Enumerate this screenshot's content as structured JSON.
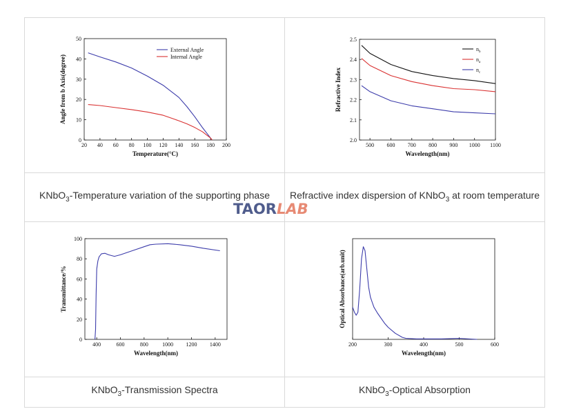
{
  "watermark": {
    "part1": "TAOR",
    "part2": "LAB"
  },
  "captions": [
    {
      "main": "KNbO",
      "sub": "3",
      "rest": "-Temperature variation of the supporting phase"
    },
    {
      "pre": "Refractive index dispersion of KNbO",
      "sub": "3",
      "rest": " at room temperature"
    },
    {
      "main": "KNbO",
      "sub": "3",
      "rest": "-Transmission Spectra"
    },
    {
      "main": "KNbO",
      "sub": "3",
      "rest": "-Optical Absorption"
    }
  ],
  "chart_data": [
    {
      "type": "line",
      "xlabel": "Temperature(°C)",
      "ylabel": "Angle from b Axis(degree)",
      "xlim": [
        20,
        200
      ],
      "ylim": [
        0,
        50
      ],
      "xticks": [
        "20",
        "40",
        "60",
        "80",
        "100",
        "120",
        "140",
        "160",
        "180",
        "200"
      ],
      "yticks": [
        "0",
        "10",
        "20",
        "30",
        "40",
        "50"
      ],
      "legend": "top-right",
      "series": [
        {
          "name": "External Angle",
          "color": "#3b3baa",
          "x": [
            25,
            40,
            60,
            80,
            100,
            120,
            140,
            150,
            160,
            170,
            175,
            180,
            182
          ],
          "y": [
            43,
            41,
            38.5,
            35.5,
            31.5,
            27,
            21,
            16.5,
            11.5,
            6,
            3.5,
            1,
            0
          ]
        },
        {
          "name": "Internal Angle",
          "color": "#d93030",
          "x": [
            25,
            40,
            60,
            80,
            100,
            120,
            140,
            150,
            160,
            170,
            175,
            180,
            182
          ],
          "y": [
            17.5,
            17,
            16,
            15,
            13.8,
            12.2,
            9.5,
            8,
            6.2,
            4,
            2.5,
            1,
            0
          ]
        }
      ]
    },
    {
      "type": "line",
      "xlabel": "Wavelength(nm)",
      "ylabel": "Refractive Index",
      "xlim": [
        450,
        1100
      ],
      "ylim": [
        2.0,
        2.5
      ],
      "xticks": [
        "500",
        "600",
        "700",
        "800",
        "900",
        "1000",
        "1100"
      ],
      "yticks": [
        "2.0",
        "2.1",
        "2.2",
        "2.3",
        "2.4",
        "2.5"
      ],
      "legend": "top-right",
      "series": [
        {
          "name": "nb",
          "color": "#111111",
          "x": [
            460,
            500,
            600,
            700,
            800,
            900,
            1000,
            1100
          ],
          "y": [
            2.47,
            2.43,
            2.375,
            2.34,
            2.32,
            2.305,
            2.295,
            2.28
          ]
        },
        {
          "name": "na",
          "color": "#d93030",
          "x": [
            460,
            500,
            600,
            700,
            800,
            900,
            1000,
            1100
          ],
          "y": [
            2.405,
            2.37,
            2.32,
            2.29,
            2.27,
            2.255,
            2.25,
            2.24
          ]
        },
        {
          "name": "nc",
          "color": "#3b3baa",
          "x": [
            460,
            500,
            600,
            700,
            800,
            900,
            1000,
            1100
          ],
          "y": [
            2.27,
            2.24,
            2.195,
            2.17,
            2.155,
            2.14,
            2.135,
            2.13
          ]
        }
      ]
    },
    {
      "type": "line",
      "xlabel": "Wavelength(nm)",
      "ylabel": "Transmittance/%",
      "xlim": [
        300,
        1500
      ],
      "ylim": [
        0,
        100
      ],
      "xticks": [
        "400",
        "600",
        "800",
        "1000",
        "1200",
        "1400"
      ],
      "yticks": [
        "0",
        "20",
        "40",
        "60",
        "80",
        "100"
      ],
      "series": [
        {
          "color": "#3b3baa",
          "x": [
            385,
            390,
            395,
            400,
            410,
            420,
            440,
            470,
            500,
            550,
            600,
            700,
            800,
            850,
            900,
            1000,
            1100,
            1200,
            1300,
            1440
          ],
          "y": [
            0,
            10,
            45,
            70,
            78,
            82,
            85,
            85.5,
            84,
            82.5,
            84,
            88,
            92,
            94,
            94.5,
            95,
            94,
            92.5,
            90.5,
            88
          ]
        }
      ]
    },
    {
      "type": "line",
      "xlabel": "Wavelength(nm)",
      "ylabel": "Optical Absorbance(arb.unit)",
      "xlim": [
        200,
        600
      ],
      "ylim": [
        0,
        1
      ],
      "xticks": [
        "200",
        "300",
        "400",
        "500",
        "600"
      ],
      "yticks": [],
      "series": [
        {
          "color": "#3b3baa",
          "x": [
            200,
            205,
            210,
            215,
            220,
            225,
            230,
            235,
            240,
            245,
            250,
            255,
            260,
            270,
            280,
            290,
            300,
            320,
            340,
            350,
            380,
            450,
            500,
            550
          ],
          "y": [
            0.32,
            0.27,
            0.24,
            0.27,
            0.5,
            0.8,
            0.92,
            0.88,
            0.7,
            0.52,
            0.42,
            0.37,
            0.32,
            0.26,
            0.21,
            0.16,
            0.12,
            0.06,
            0.02,
            0.01,
            0.005,
            0.005,
            0.01,
            0.0
          ]
        }
      ]
    }
  ]
}
